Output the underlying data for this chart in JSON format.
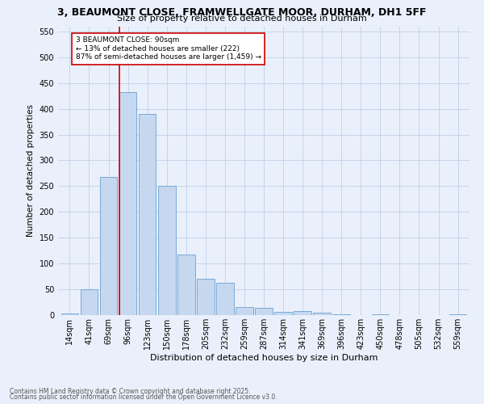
{
  "title1": "3, BEAUMONT CLOSE, FRAMWELLGATE MOOR, DURHAM, DH1 5FF",
  "title2": "Size of property relative to detached houses in Durham",
  "xlabel": "Distribution of detached houses by size in Durham",
  "ylabel": "Number of detached properties",
  "bar_labels": [
    "14sqm",
    "41sqm",
    "69sqm",
    "96sqm",
    "123sqm",
    "150sqm",
    "178sqm",
    "205sqm",
    "232sqm",
    "259sqm",
    "287sqm",
    "314sqm",
    "341sqm",
    "369sqm",
    "396sqm",
    "423sqm",
    "450sqm",
    "478sqm",
    "505sqm",
    "532sqm",
    "559sqm"
  ],
  "bar_values": [
    3,
    50,
    268,
    433,
    390,
    250,
    118,
    70,
    62,
    15,
    14,
    7,
    8,
    5,
    2,
    0,
    1,
    0,
    0,
    0,
    2
  ],
  "bar_color": "#c5d8f0",
  "bar_edge_color": "#7baad4",
  "ylim": [
    0,
    560
  ],
  "yticks": [
    0,
    50,
    100,
    150,
    200,
    250,
    300,
    350,
    400,
    450,
    500,
    550
  ],
  "vline_x": 3,
  "vline_color": "#cc0000",
  "annotation_text": "3 BEAUMONT CLOSE: 90sqm\n← 13% of detached houses are smaller (222)\n87% of semi-detached houses are larger (1,459) →",
  "annotation_box_color": "#ffffff",
  "annotation_box_edge": "#cc0000",
  "footer1": "Contains HM Land Registry data © Crown copyright and database right 2025.",
  "footer2": "Contains public sector information licensed under the Open Government Licence v3.0.",
  "bg_color": "#eaf0fb",
  "grid_color": "#c0cfe8",
  "title1_fontsize": 9,
  "title2_fontsize": 8,
  "xlabel_fontsize": 8,
  "ylabel_fontsize": 7.5,
  "tick_fontsize": 7,
  "annotation_fontsize": 6.5,
  "footer_fontsize": 5.5
}
